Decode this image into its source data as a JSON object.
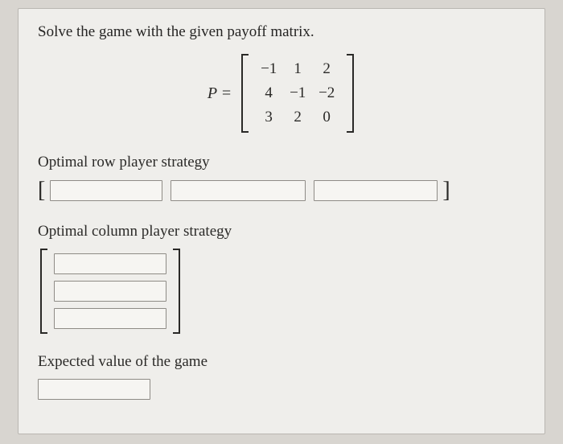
{
  "prompt": "Solve the game with the given payoff matrix.",
  "matrix": {
    "label": "P =",
    "rows": [
      [
        "−1",
        "1",
        "2"
      ],
      [
        "4",
        "−1",
        "−2"
      ],
      [
        "3",
        "2",
        "0"
      ]
    ]
  },
  "row_strategy": {
    "label": "Optimal row player strategy",
    "values": [
      "",
      "",
      ""
    ]
  },
  "col_strategy": {
    "label": "Optimal column player strategy",
    "values": [
      "",
      "",
      ""
    ]
  },
  "expected_value": {
    "label": "Expected value of the game",
    "value": ""
  },
  "colors": {
    "page_bg": "#d8d5d0",
    "card_bg": "#efeeeb",
    "border": "#b9b6b1",
    "text": "#262524",
    "input_border": "#8e8b86",
    "input_bg": "#f6f5f2"
  }
}
